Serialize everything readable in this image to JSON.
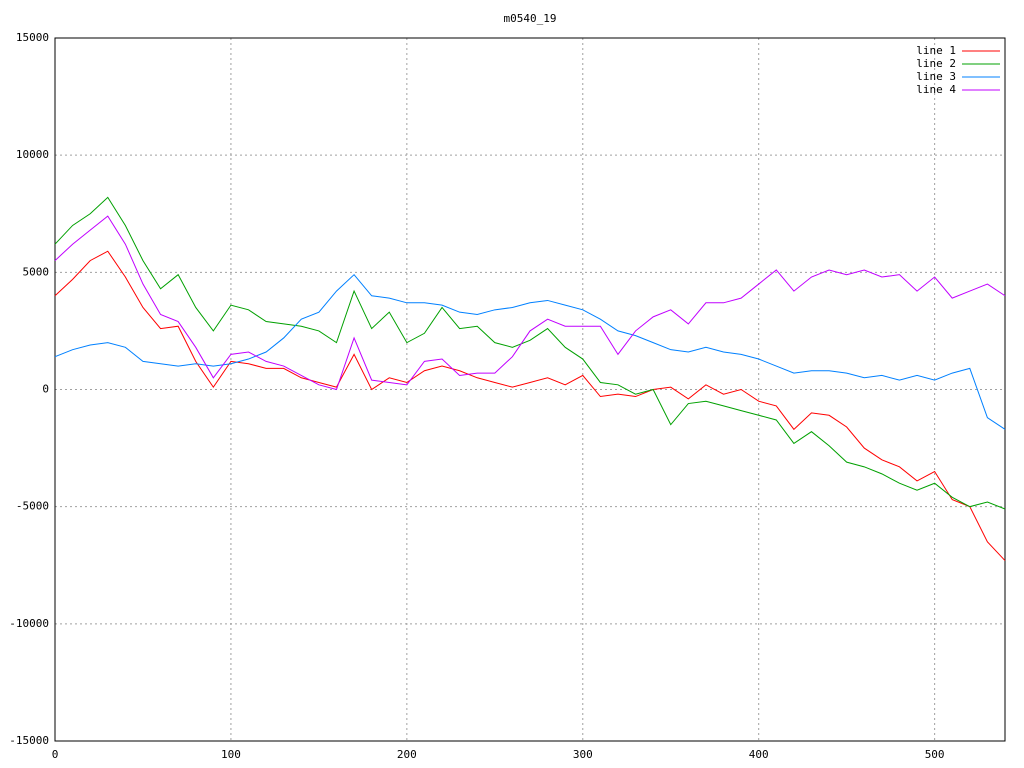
{
  "chart_data": {
    "type": "line",
    "title": "m0540_19",
    "x": [
      0,
      10,
      20,
      30,
      40,
      50,
      60,
      70,
      80,
      90,
      100,
      110,
      120,
      130,
      140,
      150,
      160,
      170,
      180,
      190,
      200,
      210,
      220,
      230,
      240,
      250,
      260,
      270,
      280,
      290,
      300,
      310,
      320,
      330,
      340,
      350,
      360,
      370,
      380,
      390,
      400,
      410,
      420,
      430,
      440,
      450,
      460,
      470,
      480,
      490,
      500,
      510,
      520,
      530,
      540
    ],
    "series": [
      {
        "name": "line 1",
        "color": "#ff0000",
        "values": [
          4000,
          4700,
          5500,
          5900,
          4800,
          3500,
          2600,
          2700,
          1200,
          100,
          1200,
          1100,
          900,
          900,
          500,
          300,
          100,
          1500,
          0,
          500,
          300,
          800,
          1000,
          800,
          500,
          300,
          100,
          300,
          500,
          200,
          600,
          -300,
          -200,
          -300,
          0,
          100,
          -400,
          200,
          -200,
          0,
          -500,
          -700,
          -1700,
          -1000,
          -1100,
          -1600,
          -2500,
          -3000,
          -3300,
          -3900,
          -3500,
          -4700,
          -5000,
          -6500,
          -7300
        ]
      },
      {
        "name": "line 2",
        "color": "#00a000",
        "values": [
          6200,
          7000,
          7500,
          8200,
          7000,
          5500,
          4300,
          4900,
          3500,
          2500,
          3600,
          3400,
          2900,
          2800,
          2700,
          2500,
          2000,
          4200,
          2600,
          3300,
          2000,
          2400,
          3500,
          2600,
          2700,
          2000,
          1800,
          2100,
          2600,
          1800,
          1300,
          300,
          200,
          -200,
          0,
          -1500,
          -600,
          -500,
          -700,
          -900,
          -1100,
          -1300,
          -2300,
          -1800,
          -2400,
          -3100,
          -3300,
          -3600,
          -4000,
          -4300,
          -4000,
          -4600,
          -5000,
          -4800,
          -5100
        ]
      },
      {
        "name": "line 3",
        "color": "#0080ff",
        "values": [
          1400,
          1700,
          1900,
          2000,
          1800,
          1200,
          1100,
          1000,
          1100,
          1000,
          1100,
          1300,
          1600,
          2200,
          3000,
          3300,
          4200,
          4900,
          4000,
          3900,
          3700,
          3700,
          3600,
          3300,
          3200,
          3400,
          3500,
          3700,
          3800,
          3600,
          3400,
          3000,
          2500,
          2300,
          2000,
          1700,
          1600,
          1800,
          1600,
          1500,
          1300,
          1000,
          700,
          800,
          800,
          700,
          500,
          600,
          400,
          600,
          400,
          700,
          900,
          -1200,
          -1700
        ]
      },
      {
        "name": "line 4",
        "color": "#c000ff",
        "values": [
          5500,
          6200,
          6800,
          7400,
          6200,
          4500,
          3200,
          2900,
          1800,
          500,
          1500,
          1600,
          1200,
          1000,
          600,
          200,
          0,
          2200,
          400,
          300,
          200,
          1200,
          1300,
          600,
          700,
          700,
          1400,
          2500,
          3000,
          2700,
          2700,
          2700,
          1500,
          2500,
          3100,
          3400,
          2800,
          3700,
          3700,
          3900,
          4500,
          5100,
          4200,
          4800,
          5100,
          4900,
          5100,
          4800,
          4900,
          4200,
          4800,
          3900,
          4200,
          4500,
          4000
        ]
      }
    ],
    "xlim": [
      0,
      540
    ],
    "ylim": [
      -15000,
      15000
    ],
    "xticks": [
      0,
      100,
      200,
      300,
      400,
      500
    ],
    "yticks": [
      -15000,
      -10000,
      -5000,
      0,
      5000,
      10000,
      15000
    ],
    "grid": true,
    "legend": "top-right"
  }
}
